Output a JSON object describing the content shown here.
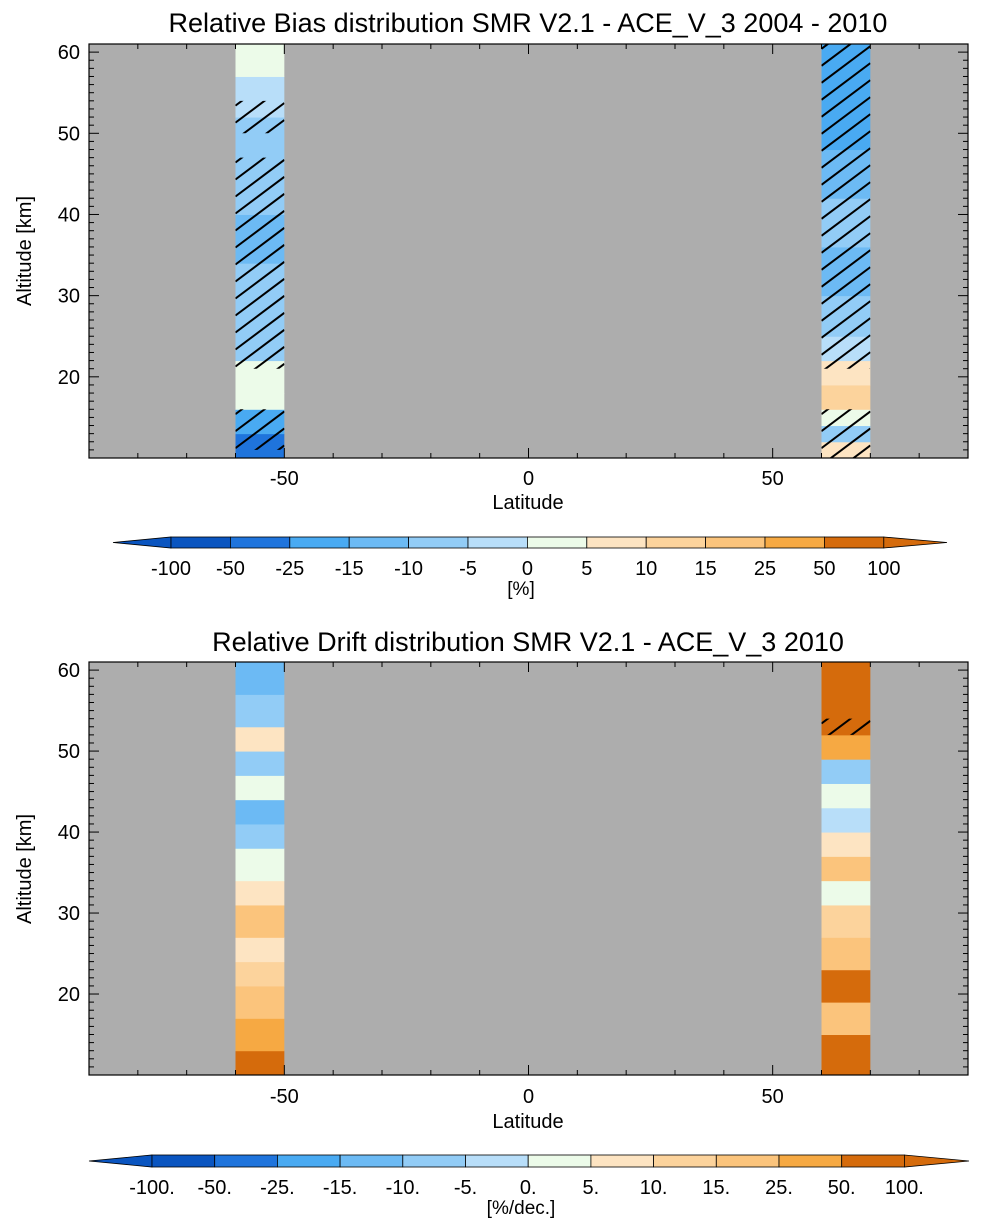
{
  "chart_data": [
    {
      "type": "heatmap",
      "title": "Relative Bias distribution SMR V2.1 - ACE_V_3 2004 - 2010",
      "xlabel": "Latitude",
      "ylabel": "Altitude [km]",
      "xlim": [
        -90,
        90
      ],
      "ylim": [
        10,
        61
      ],
      "x_ticks": [
        -50,
        0,
        50
      ],
      "y_ticks": [
        20,
        30,
        40,
        50,
        60
      ],
      "background_color": "#adadad",
      "colorbar": {
        "unit_label": "[%]",
        "levels": [
          "-100",
          "-50",
          "-25",
          "-15",
          "-10",
          "-5",
          "0",
          "5",
          "10",
          "15",
          "25",
          "50",
          "100"
        ],
        "colors": [
          "#0a55c0",
          "#1f74dc",
          "#49aaf2",
          "#6cbaf4",
          "#92ccf6",
          "#b8def9",
          "#ecfbe9",
          "#fde4c2",
          "#fcd39c",
          "#fbc47c",
          "#f6a943",
          "#d56b0c"
        ]
      },
      "columns": [
        {
          "lat_range": [
            -60,
            -50
          ],
          "hatched_altitudes": [
            [
              11,
              16
            ],
            [
              21,
              47
            ],
            [
              50,
              54
            ]
          ],
          "bands": [
            {
              "alt": [
                10,
                13
              ],
              "value": -40
            },
            {
              "alt": [
                13,
                16
              ],
              "value": -20
            },
            {
              "alt": [
                16,
                18
              ],
              "value": 2
            },
            {
              "alt": [
                18,
                22
              ],
              "value": 1
            },
            {
              "alt": [
                22,
                28
              ],
              "value": -6
            },
            {
              "alt": [
                28,
                34
              ],
              "value": -8
            },
            {
              "alt": [
                34,
                40
              ],
              "value": -11
            },
            {
              "alt": [
                40,
                46
              ],
              "value": -8
            },
            {
              "alt": [
                46,
                52
              ],
              "value": -6
            },
            {
              "alt": [
                52,
                57
              ],
              "value": -4
            },
            {
              "alt": [
                57,
                61
              ],
              "value": 2
            }
          ]
        },
        {
          "lat_range": [
            60,
            70
          ],
          "hatched_altitudes": [
            [
              10,
              16
            ],
            [
              21,
              61
            ]
          ],
          "bands": [
            {
              "alt": [
                10,
                12
              ],
              "value": 8
            },
            {
              "alt": [
                12,
                14
              ],
              "value": -8
            },
            {
              "alt": [
                14,
                16
              ],
              "value": 4
            },
            {
              "alt": [
                16,
                19
              ],
              "value": 12
            },
            {
              "alt": [
                19,
                22
              ],
              "value": 6
            },
            {
              "alt": [
                22,
                25
              ],
              "value": -4
            },
            {
              "alt": [
                25,
                30
              ],
              "value": -8
            },
            {
              "alt": [
                30,
                36
              ],
              "value": -12
            },
            {
              "alt": [
                36,
                42
              ],
              "value": -9
            },
            {
              "alt": [
                42,
                48
              ],
              "value": -14
            },
            {
              "alt": [
                48,
                54
              ],
              "value": -18
            },
            {
              "alt": [
                54,
                61
              ],
              "value": -22
            }
          ]
        }
      ]
    },
    {
      "type": "heatmap",
      "title": "Relative Drift distribution SMR V2.1 - ACE_V_3 2010",
      "xlabel": "Latitude",
      "ylabel": "Altitude [km]",
      "xlim": [
        -90,
        90
      ],
      "ylim": [
        10,
        61
      ],
      "x_ticks": [
        -50,
        0,
        50
      ],
      "y_ticks": [
        20,
        30,
        40,
        50,
        60
      ],
      "background_color": "#adadad",
      "colorbar": {
        "unit_label": "[%/dec.]",
        "levels": [
          "-100.",
          "-50.",
          "-25.",
          "-15.",
          "-10.",
          "-5.",
          "0.",
          "5.",
          "10.",
          "15.",
          "25.",
          "50.",
          "100."
        ],
        "colors": [
          "#0a55c0",
          "#1f74dc",
          "#49aaf2",
          "#6cbaf4",
          "#92ccf6",
          "#b8def9",
          "#ecfbe9",
          "#fde4c2",
          "#fcd39c",
          "#fbc47c",
          "#f6a943",
          "#d56b0c"
        ]
      },
      "columns": [
        {
          "lat_range": [
            -60,
            -50
          ],
          "hatched_altitudes": [],
          "bands": [
            {
              "alt": [
                10,
                13
              ],
              "value": 60
            },
            {
              "alt": [
                13,
                17
              ],
              "value": 35
            },
            {
              "alt": [
                17,
                21
              ],
              "value": 20
            },
            {
              "alt": [
                21,
                24
              ],
              "value": 12
            },
            {
              "alt": [
                24,
                27
              ],
              "value": 8
            },
            {
              "alt": [
                27,
                31
              ],
              "value": 18
            },
            {
              "alt": [
                31,
                34
              ],
              "value": 6
            },
            {
              "alt": [
                34,
                38
              ],
              "value": 1
            },
            {
              "alt": [
                38,
                41
              ],
              "value": -6
            },
            {
              "alt": [
                41,
                44
              ],
              "value": -11
            },
            {
              "alt": [
                44,
                47
              ],
              "value": 4
            },
            {
              "alt": [
                47,
                50
              ],
              "value": -8
            },
            {
              "alt": [
                50,
                53
              ],
              "value": 7
            },
            {
              "alt": [
                53,
                57
              ],
              "value": -9
            },
            {
              "alt": [
                57,
                61
              ],
              "value": -11
            }
          ]
        },
        {
          "lat_range": [
            60,
            70
          ],
          "hatched_altitudes": [
            [
              52,
              54
            ]
          ],
          "bands": [
            {
              "alt": [
                10,
                15
              ],
              "value": 80
            },
            {
              "alt": [
                15,
                19
              ],
              "value": 20
            },
            {
              "alt": [
                19,
                23
              ],
              "value": 55
            },
            {
              "alt": [
                23,
                27
              ],
              "value": 18
            },
            {
              "alt": [
                27,
                31
              ],
              "value": 12
            },
            {
              "alt": [
                31,
                34
              ],
              "value": 4
            },
            {
              "alt": [
                34,
                37
              ],
              "value": 20
            },
            {
              "alt": [
                37,
                40
              ],
              "value": 8
            },
            {
              "alt": [
                40,
                43
              ],
              "value": -3
            },
            {
              "alt": [
                43,
                46
              ],
              "value": 3
            },
            {
              "alt": [
                46,
                49
              ],
              "value": -6
            },
            {
              "alt": [
                49,
                52
              ],
              "value": 30
            },
            {
              "alt": [
                52,
                61
              ],
              "value": 60
            }
          ]
        }
      ]
    }
  ]
}
